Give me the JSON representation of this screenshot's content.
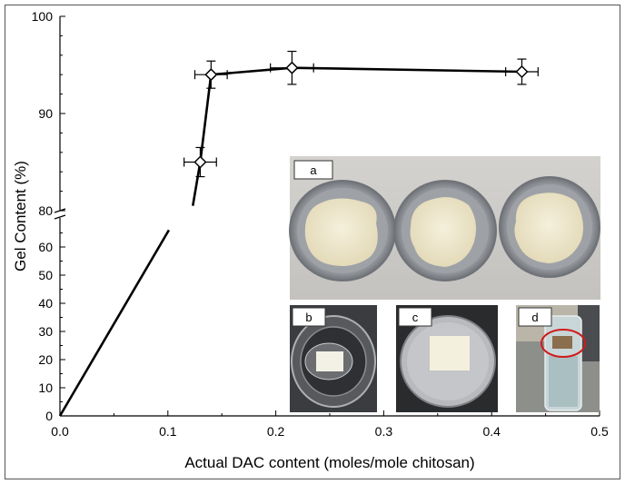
{
  "chart_data": {
    "type": "line",
    "xlabel": "Actual DAC content (moles/mole chitosan)",
    "ylabel": "Gel Content (%)",
    "xlim": [
      0.0,
      0.5
    ],
    "x_ticks": [
      "0.0",
      "0.1",
      "0.2",
      "0.3",
      "0.4",
      "0.5"
    ],
    "y_ticks_lower": [
      "0",
      "10",
      "20",
      "30",
      "40",
      "50",
      "60"
    ],
    "y_ticks_upper": [
      "80",
      "90",
      "100"
    ],
    "y_axis_break": "broken between 65 and 80",
    "series": [
      {
        "marker": "open diamond",
        "points": [
          {
            "x": 0.0,
            "y": 0.0,
            "xerr": 0.0,
            "yerr": 0.0
          },
          {
            "x": 0.13,
            "y": 85.0,
            "xerr": 0.015,
            "yerr": 1.5
          },
          {
            "x": 0.14,
            "y": 94.0,
            "xerr": 0.015,
            "yerr": 1.4
          },
          {
            "x": 0.215,
            "y": 94.7,
            "xerr": 0.02,
            "yerr": 1.7
          },
          {
            "x": 0.428,
            "y": 94.3,
            "xerr": 0.015,
            "yerr": 1.3
          }
        ]
      }
    ]
  },
  "insets": {
    "a": {
      "label": "a",
      "description": "three dried hydrogel films in aluminium dishes"
    },
    "b": {
      "label": "b",
      "description": "film in glass container"
    },
    "c": {
      "label": "c",
      "description": "film on aluminium dish"
    },
    "d": {
      "label": "d",
      "description": "vial with circled sample"
    }
  },
  "colors": {
    "line": "#000000",
    "marker_fill": "#ffffff",
    "photo_bg": "#d9d6d1"
  }
}
